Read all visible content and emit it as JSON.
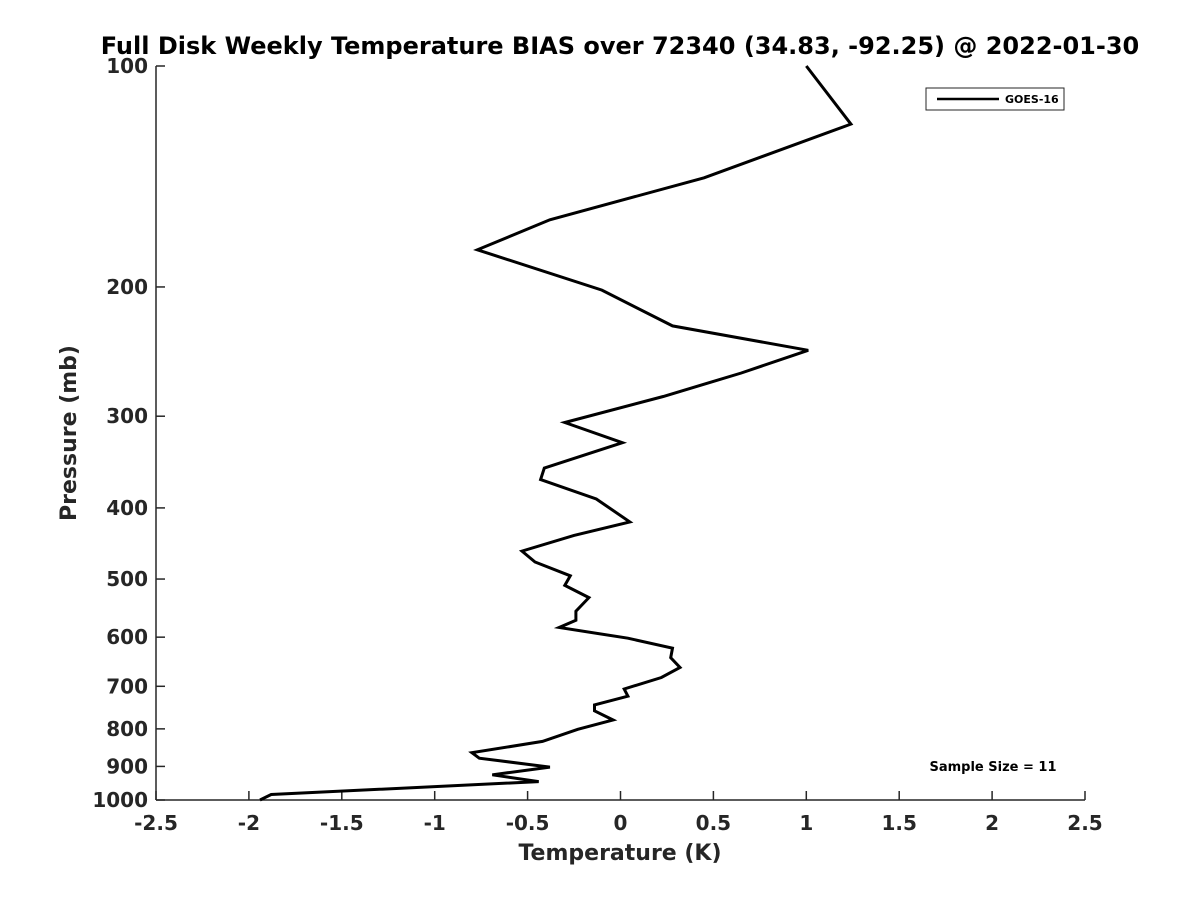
{
  "chart_data": {
    "type": "line",
    "title": "Full Disk Weekly Temperature BIAS over 72340 (34.83, -92.25) @ 2022-01-30",
    "xlabel": "Temperature (K)",
    "ylabel": "Pressure (mb)",
    "xlim": [
      -2.5,
      2.5
    ],
    "ylim": [
      100,
      1000
    ],
    "y_scale": "log",
    "y_reversed": true,
    "xticks": [
      "-2.5",
      "-2",
      "-1.5",
      "-1",
      "-0.5",
      "0",
      "0.5",
      "1",
      "1.5",
      "2",
      "2.5"
    ],
    "yticks": [
      "100",
      "200",
      "300",
      "400",
      "500",
      "600",
      "700",
      "800",
      "900",
      "1000"
    ],
    "grid": false,
    "legend_position": "top-right",
    "line_color": "#000000",
    "series": [
      {
        "name": "GOES-16",
        "x": [
          1.0,
          1.24,
          0.45,
          -0.38,
          -0.77,
          -0.1,
          0.28,
          1.01,
          0.65,
          0.23,
          -0.3,
          0.01,
          -0.41,
          -0.43,
          -0.13,
          0.05,
          -0.25,
          -0.53,
          -0.46,
          -0.27,
          -0.3,
          -0.17,
          -0.24,
          -0.24,
          -0.33,
          0.04,
          0.28,
          0.27,
          0.32,
          0.22,
          0.02,
          0.04,
          -0.14,
          -0.14,
          -0.04,
          -0.23,
          -0.42,
          -0.8,
          -0.76,
          -0.38,
          -0.69,
          -0.44,
          -1.88,
          -1.94
        ],
        "y": [
          100,
          120,
          142,
          162,
          178,
          202,
          226,
          244,
          262,
          282,
          306,
          326,
          353,
          366,
          389,
          418,
          436,
          458,
          474,
          495,
          510,
          530,
          553,
          569,
          582,
          602,
          621,
          640,
          660,
          681,
          706,
          722,
          742,
          756,
          778,
          801,
          832,
          862,
          877,
          902,
          924,
          944,
          983,
          1000
        ]
      }
    ],
    "annotation": "Sample Size = 11"
  }
}
